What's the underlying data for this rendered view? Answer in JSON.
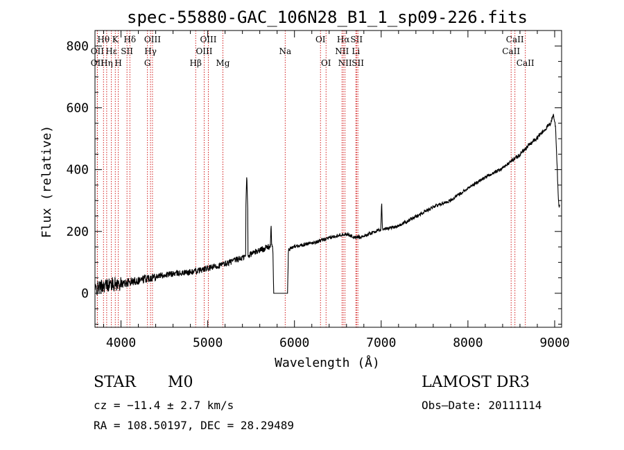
{
  "chart_data": {
    "type": "line",
    "title": "spec-55880-GAC_106N28_B1_1_sp09-226.fits",
    "xlabel": "Wavelength (Å)",
    "ylabel": "Flux (relative)",
    "xlim": [
      3700,
      9080
    ],
    "ylim": [
      -110,
      850
    ],
    "xticks": [
      4000,
      5000,
      6000,
      7000,
      8000,
      9000
    ],
    "yticks": [
      0,
      200,
      400,
      600,
      800
    ],
    "grid": false,
    "line_color": "#000000",
    "marker_color": "#cc0000",
    "spectrum_anchors": [
      [
        3700,
        10
      ],
      [
        3750,
        20
      ],
      [
        3800,
        25
      ],
      [
        3900,
        30
      ],
      [
        4000,
        30
      ],
      [
        4200,
        42
      ],
      [
        4400,
        55
      ],
      [
        4600,
        63
      ],
      [
        4800,
        68
      ],
      [
        5000,
        80
      ],
      [
        5200,
        95
      ],
      [
        5400,
        115
      ],
      [
        5600,
        140
      ],
      [
        5700,
        150
      ],
      [
        5750,
        155
      ],
      [
        5760,
        0
      ],
      [
        5920,
        0
      ],
      [
        5930,
        140
      ],
      [
        6000,
        152
      ],
      [
        6200,
        162
      ],
      [
        6400,
        178
      ],
      [
        6500,
        188
      ],
      [
        6600,
        192
      ],
      [
        6700,
        180
      ],
      [
        6800,
        185
      ],
      [
        6900,
        197
      ],
      [
        6990,
        205
      ],
      [
        7200,
        218
      ],
      [
        7400,
        248
      ],
      [
        7600,
        280
      ],
      [
        7800,
        300
      ],
      [
        8000,
        340
      ],
      [
        8200,
        375
      ],
      [
        8400,
        405
      ],
      [
        8600,
        450
      ],
      [
        8800,
        505
      ],
      [
        8950,
        548
      ],
      [
        8985,
        578
      ],
      [
        9010,
        540
      ],
      [
        9030,
        400
      ],
      [
        9045,
        290
      ],
      [
        9060,
        280
      ]
    ],
    "spectrum_spikes": [
      {
        "wavelength": 5450,
        "flux": 385
      },
      {
        "wavelength": 5730,
        "flux": 228
      },
      {
        "wavelength": 7005,
        "flux": 300
      }
    ],
    "lines": [
      {
        "label": "Hθ",
        "wavelength": 3798,
        "row": 0
      },
      {
        "label": "OII",
        "wavelength": 3727,
        "row": 1
      },
      {
        "label": "OII",
        "wavelength": 3727,
        "row": 2
      },
      {
        "label": "K",
        "wavelength": 3934,
        "row": 0
      },
      {
        "label": "Hε",
        "wavelength": 3889,
        "row": 1
      },
      {
        "label": "Hη",
        "wavelength": 3835,
        "row": 2
      },
      {
        "label": "Hδ",
        "wavelength": 4102,
        "row": 0
      },
      {
        "label": "SII",
        "wavelength": 4069,
        "row": 1
      },
      {
        "label": "H",
        "wavelength": 3969,
        "row": 2
      },
      {
        "label": "OIII",
        "wavelength": 4363,
        "row": 0
      },
      {
        "label": "Hγ",
        "wavelength": 4340,
        "row": 1
      },
      {
        "label": "G",
        "wavelength": 4305,
        "row": 2
      },
      {
        "label": "OIII",
        "wavelength": 5007,
        "row": 0
      },
      {
        "label": "OIII",
        "wavelength": 4959,
        "row": 1
      },
      {
        "label": "Hβ",
        "wavelength": 4861,
        "row": 2
      },
      {
        "label": "Mg",
        "wavelength": 5175,
        "row": 2
      },
      {
        "label": "Na",
        "wavelength": 5893,
        "row": 1
      },
      {
        "label": "OI",
        "wavelength": 6300,
        "row": 0
      },
      {
        "label": "OI",
        "wavelength": 6364,
        "row": 2
      },
      {
        "label": "Hα",
        "wavelength": 6563,
        "row": 0
      },
      {
        "label": "NII",
        "wavelength": 6548,
        "row": 1
      },
      {
        "label": "NII",
        "wavelength": 6583,
        "row": 2
      },
      {
        "label": "SII",
        "wavelength": 6716,
        "row": 0
      },
      {
        "label": "Li",
        "wavelength": 6708,
        "row": 1
      },
      {
        "label": "SII",
        "wavelength": 6731,
        "row": 2
      },
      {
        "label": "CaII",
        "wavelength": 8542,
        "row": 0
      },
      {
        "label": "CaII",
        "wavelength": 8498,
        "row": 1
      },
      {
        "label": "CaII",
        "wavelength": 8662,
        "row": 2
      }
    ]
  },
  "info": {
    "object_class": "STAR",
    "subclass": "M0",
    "survey": "LAMOST DR3",
    "redshift": "cz = −11.4 ± 2.7 km/s",
    "obs_date": "Obs–Date: 20111114",
    "coords": "RA = 108.50197, DEC =  28.29489"
  }
}
